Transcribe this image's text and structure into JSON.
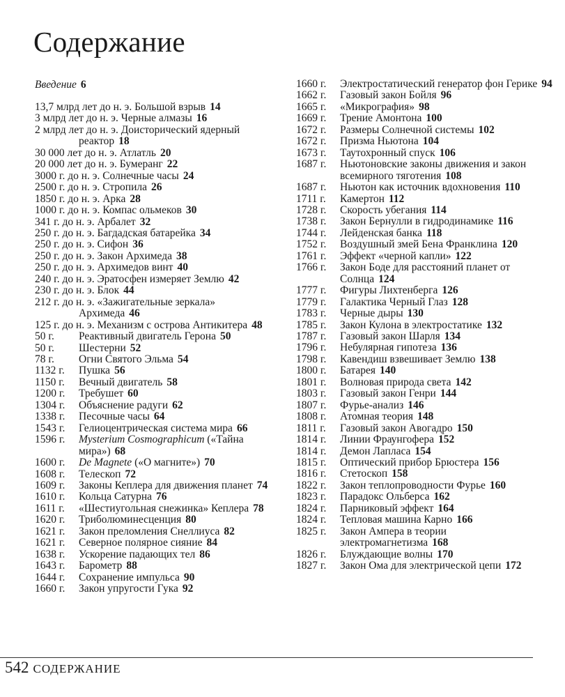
{
  "title": "Содержание",
  "intro": {
    "label": "Введение",
    "page": "6"
  },
  "left_entries": [
    {
      "date": "13,7 млрд лет до н. э.",
      "inline": true,
      "title": "Большой взрыв",
      "page": "14"
    },
    {
      "date": "3 млрд лет до н. э.",
      "inline": true,
      "title": "Черные алмазы",
      "page": "16"
    },
    {
      "date": "2 млрд лет до н. э.",
      "inline": true,
      "title": "Доисторический ядерный реактор",
      "page": "18"
    },
    {
      "date": "30 000 лет до н. э.",
      "inline": true,
      "title": "Атлатль",
      "page": "20"
    },
    {
      "date": "20 000 лет до н. э.",
      "inline": true,
      "title": "Бумеранг",
      "page": "22"
    },
    {
      "date": "3000 г. до н. э.",
      "inline": true,
      "title": "Солнечные часы",
      "page": "24"
    },
    {
      "date": "2500 г. до н. э.",
      "inline": true,
      "title": "Стропила",
      "page": "26"
    },
    {
      "date": "1850 г. до н. э.",
      "inline": true,
      "title": "Арка",
      "page": "28"
    },
    {
      "date": "1000 г. до н. э.",
      "inline": true,
      "title": "Компас ольмеков",
      "page": "30"
    },
    {
      "date": "341 г. до н. э.",
      "inline": true,
      "title": "Арбалет",
      "page": "32"
    },
    {
      "date": "250 г. до н. э.",
      "inline": true,
      "title": "Багдадская батарейка",
      "page": "34"
    },
    {
      "date": "250 г. до н. э.",
      "inline": true,
      "title": "Сифон",
      "page": "36"
    },
    {
      "date": "250 г. до н. э.",
      "inline": true,
      "title": "Закон Архимеда",
      "page": "38"
    },
    {
      "date": "250 г. до н. э.",
      "inline": true,
      "title": "Архимедов винт",
      "page": "40"
    },
    {
      "date": "240 г. до н. э.",
      "inline": true,
      "title": "Эратосфен измеряет Землю",
      "page": "42"
    },
    {
      "date": "230 г. до н. э.",
      "inline": true,
      "title": "Блок",
      "page": "44"
    },
    {
      "date": "212 г. до н. э.",
      "inline": true,
      "title": "«Зажигательные зеркала» Архимеда",
      "page": "46"
    },
    {
      "date": "125 г. до н. э.",
      "inline": true,
      "title": "Механизм с острова Антикитера",
      "page": "48"
    },
    {
      "date": "50 г.",
      "title": "Реактивный двигатель Герона",
      "page": "50"
    },
    {
      "date": "50 г.",
      "title": "Шестерни",
      "page": "52"
    },
    {
      "date": "78 г.",
      "title": "Огни Святого Эльма",
      "page": "54"
    },
    {
      "date": "1132 г.",
      "title": "Пушка",
      "page": "56"
    },
    {
      "date": "1150 г.",
      "title": "Вечный двигатель",
      "page": "58"
    },
    {
      "date": "1200 г.",
      "title": "Требушет",
      "page": "60"
    },
    {
      "date": "1304 г.",
      "title": "Объяснение радуги",
      "page": "62"
    },
    {
      "date": "1338 г.",
      "title": "Песочные часы",
      "page": "64"
    },
    {
      "date": "1543 г.",
      "title": "Гелиоцентрическая система мира",
      "page": "66"
    },
    {
      "date": "1596 г.",
      "title_italic": "Mysterium Cosmographicum",
      "title": "(«Тайна мира»)",
      "page": "68"
    },
    {
      "date": "1600 г.",
      "title_italic": "De Magnete",
      "title": "(«О магните»)",
      "page": "70"
    },
    {
      "date": "1608 г.",
      "title": "Телескоп",
      "page": "72"
    },
    {
      "date": "1609 г.",
      "title": "Законы Кеплера для движения планет",
      "page": "74"
    },
    {
      "date": "1610 г.",
      "title": "Кольца Сатурна",
      "page": "76"
    },
    {
      "date": "1611 г.",
      "title": "«Шестиугольная снежинка» Кеплера",
      "page": "78"
    },
    {
      "date": "1620 г.",
      "title": "Триболюминесценция",
      "page": "80"
    },
    {
      "date": "1621 г.",
      "title": "Закон преломления Снеллиуса",
      "page": "82"
    },
    {
      "date": "1621 г.",
      "title": "Северное полярное сияние",
      "page": "84"
    },
    {
      "date": "1638 г.",
      "title": "Ускорение падающих тел",
      "page": "86"
    },
    {
      "date": "1643 г.",
      "title": "Барометр",
      "page": "88"
    },
    {
      "date": "1644 г.",
      "title": "Сохранение импульса",
      "page": "90"
    },
    {
      "date": "1660 г.",
      "title": "Закон упругости Гука",
      "page": "92"
    }
  ],
  "right_entries": [
    {
      "date": "1660 г.",
      "title": "Электростатический генератор фон Герике",
      "page": "94"
    },
    {
      "date": "1662 г.",
      "title": "Газовый закон Бойля",
      "page": "96"
    },
    {
      "date": "1665 г.",
      "title": "«Микрография»",
      "page": "98"
    },
    {
      "date": "1669 г.",
      "title": "Трение Амонтона",
      "page": "100"
    },
    {
      "date": "1672 г.",
      "title": "Размеры Солнечной системы",
      "page": "102"
    },
    {
      "date": "1672 г.",
      "title": "Призма Ньютона",
      "page": "104"
    },
    {
      "date": "1673 г.",
      "title": "Таутохронный спуск",
      "page": "106"
    },
    {
      "date": "1687 г.",
      "title": "Ньютоновские законы движения и закон всемирного тяготения",
      "page": "108"
    },
    {
      "date": "1687 г.",
      "title": "Ньютон как источник вдохновения",
      "page": "110"
    },
    {
      "date": "1711 г.",
      "title": "Камертон",
      "page": "112"
    },
    {
      "date": "1728 г.",
      "title": "Скорость убегания",
      "page": "114"
    },
    {
      "date": "1738 г.",
      "title": "Закон Бернулли в гидродинамике",
      "page": "116"
    },
    {
      "date": "1744 г.",
      "title": "Лейденская банка",
      "page": "118"
    },
    {
      "date": "1752 г.",
      "title": "Воздушный змей Бена Франклина",
      "page": "120"
    },
    {
      "date": "1761 г.",
      "title": "Эффект «черной капли»",
      "page": "122"
    },
    {
      "date": "1766 г.",
      "title": "Закон Боде для расстояний планет от Солнца",
      "page": "124"
    },
    {
      "date": "1777 г.",
      "title": "Фигуры Лихтенберга",
      "page": "126"
    },
    {
      "date": "1779 г.",
      "title": "Галактика Черный Глаз",
      "page": "128"
    },
    {
      "date": "1783 г.",
      "title": "Черные дыры",
      "page": "130"
    },
    {
      "date": "1785 г.",
      "title": "Закон Кулона в электростатике",
      "page": "132"
    },
    {
      "date": "1787 г.",
      "title": "Газовый закон Шарля",
      "page": "134"
    },
    {
      "date": "1796 г.",
      "title": "Небулярная гипотеза",
      "page": "136"
    },
    {
      "date": "1798 г.",
      "title": "Кавендиш взвешивает Землю",
      "page": "138"
    },
    {
      "date": "1800 г.",
      "title": "Батарея",
      "page": "140"
    },
    {
      "date": "1801 г.",
      "title": "Волновая природа света",
      "page": "142"
    },
    {
      "date": "1803 г.",
      "title": "Газовый закон Генри",
      "page": "144"
    },
    {
      "date": "1807 г.",
      "title": "Фурье-анализ",
      "page": "146"
    },
    {
      "date": "1808 г.",
      "title": "Атомная теория",
      "page": "148"
    },
    {
      "date": "1811 г.",
      "title": "Газовый закон Авогадро",
      "page": "150"
    },
    {
      "date": "1814 г.",
      "title": "Линии Фраунгофера",
      "page": "152"
    },
    {
      "date": "1814 г.",
      "title": "Демон Лапласа",
      "page": "154"
    },
    {
      "date": "1815 г.",
      "title": "Оптический прибор Брюстера",
      "page": "156"
    },
    {
      "date": "1816 г.",
      "title": "Стетоскоп",
      "page": "158"
    },
    {
      "date": "1822 г.",
      "title": "Закон теплопроводности Фурье",
      "page": "160"
    },
    {
      "date": "1823 г.",
      "title": "Парадокс Ольберса",
      "page": "162"
    },
    {
      "date": "1824 г.",
      "title": "Парниковый эффект",
      "page": "164"
    },
    {
      "date": "1824 г.",
      "title": "Тепловая машина Карно",
      "page": "166"
    },
    {
      "date": "1825 г.",
      "title": "Закон Ампера в теории электромагнетизма",
      "page": "168"
    },
    {
      "date": "1826 г.",
      "title": "Блуждающие волны",
      "page": "170"
    },
    {
      "date": "1827 г.",
      "title": "Закон Ома для электрической цепи",
      "page": "172"
    }
  ],
  "footer": {
    "page_number": "542",
    "section": "СОДЕРЖАНИЕ"
  }
}
